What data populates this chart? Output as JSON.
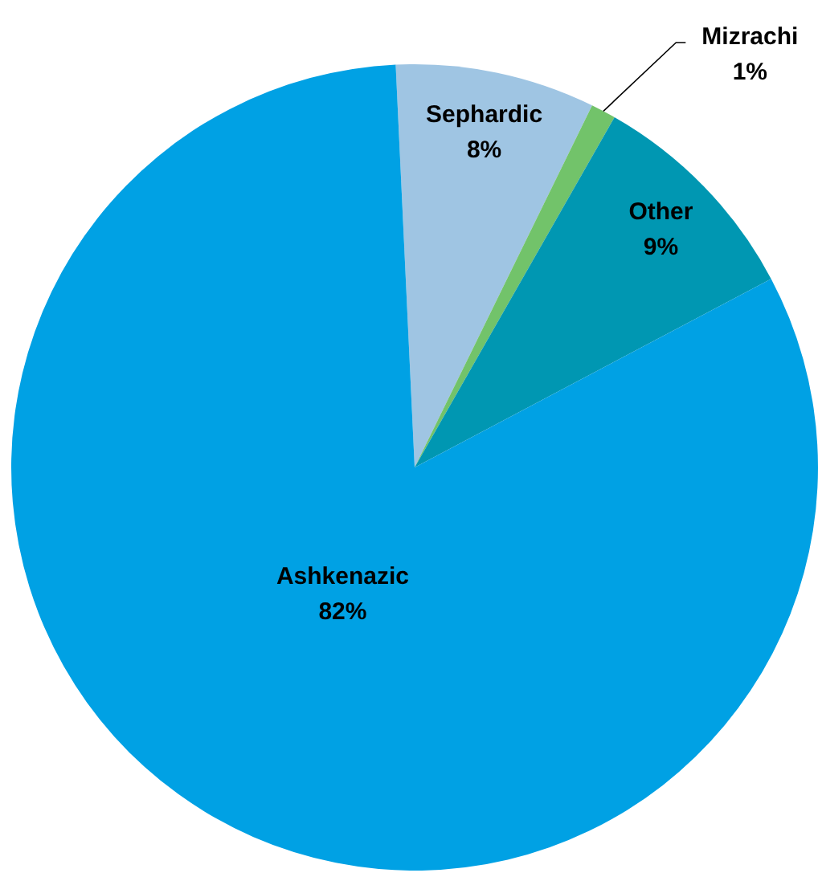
{
  "chart_data": {
    "type": "pie",
    "categories": [
      "Sephardic",
      "Mizrachi",
      "Other",
      "Ashkenazic"
    ],
    "values": [
      8,
      1,
      9,
      82
    ],
    "colors": [
      "#9fc5e3",
      "#72c36a",
      "#0097b2",
      "#00a1e4"
    ],
    "value_labels": [
      "8%",
      "1%",
      "9%",
      "82%"
    ]
  }
}
